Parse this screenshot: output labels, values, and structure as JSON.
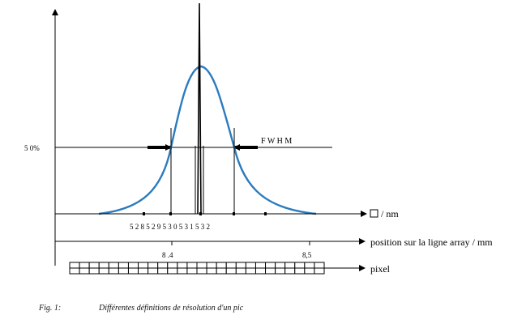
{
  "y_axis": {
    "half_max_label": "5 0%"
  },
  "fwhm_label": "F W H M",
  "wavelength_axis": {
    "label": "/ nm",
    "tick_labels": "5 2 8 5 2 9 5 3 0 5 3 1 5 3 2"
  },
  "position_axis": {
    "label": "position sur la ligne array / mm",
    "ticks": [
      {
        "label": "8 .4"
      },
      {
        "label": "8,5"
      }
    ]
  },
  "pixel_axis": {
    "label": "pixel",
    "cell_count": 26
  },
  "caption": {
    "figure": "Fig. 1:",
    "text": "Différentes définitions de résolution d'un pic"
  },
  "colors": {
    "curve": "#2b7bbf",
    "axis": "#000000"
  }
}
